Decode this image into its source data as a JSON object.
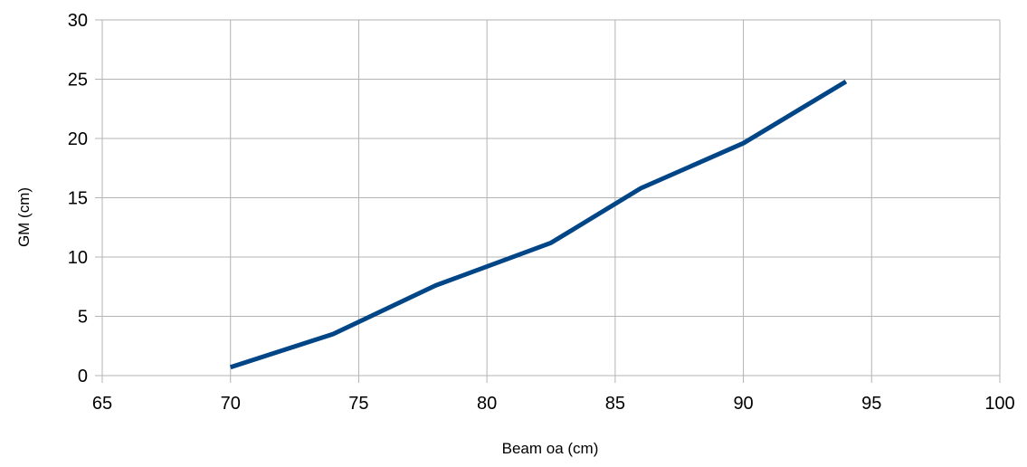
{
  "chart_data": {
    "type": "line",
    "title": "",
    "xlabel": "Beam oa (cm)",
    "ylabel": "GM (cm)",
    "xlim": [
      65,
      100
    ],
    "ylim": [
      0,
      30
    ],
    "x_ticks": [
      65,
      70,
      75,
      80,
      85,
      90,
      95,
      100
    ],
    "y_ticks": [
      0,
      5,
      10,
      15,
      20,
      25,
      30
    ],
    "grid": true,
    "legend": "none",
    "series": [
      {
        "color": "#004586",
        "x": [
          70,
          74,
          78,
          82.5,
          86,
          90,
          94
        ],
        "y": [
          0.7,
          3.5,
          7.6,
          11.2,
          15.8,
          19.6,
          24.8
        ]
      }
    ]
  }
}
